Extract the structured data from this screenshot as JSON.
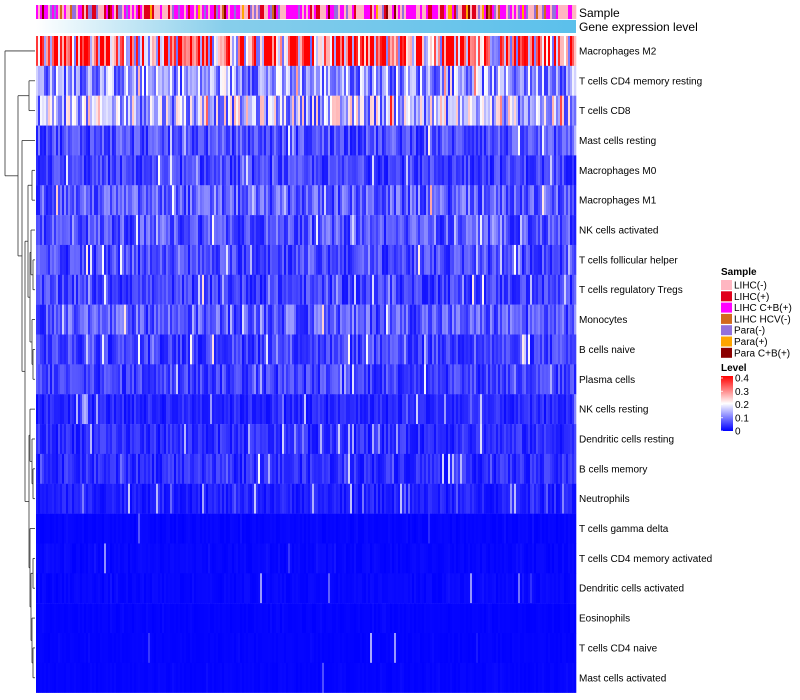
{
  "chart_data": {
    "type": "heatmap",
    "title": "",
    "annotation_tracks": [
      "Sample",
      "Gene expression level"
    ],
    "rows": [
      {
        "name": "Macrophages M2",
        "mean": 0.3
      },
      {
        "name": "T cells CD4 memory resting",
        "mean": 0.12
      },
      {
        "name": "T cells CD8",
        "mean": 0.15
      },
      {
        "name": "Mast cells resting",
        "mean": 0.06
      },
      {
        "name": "Macrophages M0",
        "mean": 0.05
      },
      {
        "name": "Macrophages M1",
        "mean": 0.07
      },
      {
        "name": "NK cells activated",
        "mean": 0.065
      },
      {
        "name": "T cells follicular helper",
        "mean": 0.055
      },
      {
        "name": "T cells regulatory  Tregs",
        "mean": 0.05
      },
      {
        "name": "Monocytes",
        "mean": 0.07
      },
      {
        "name": "B cells naive",
        "mean": 0.05
      },
      {
        "name": "Plasma cells",
        "mean": 0.05
      },
      {
        "name": "NK cells resting",
        "mean": 0.03
      },
      {
        "name": "Dendritic cells resting",
        "mean": 0.035
      },
      {
        "name": "B cells memory",
        "mean": 0.035
      },
      {
        "name": "Neutrophils",
        "mean": 0.025
      },
      {
        "name": "T cells gamma delta",
        "mean": 0.008
      },
      {
        "name": "T cells CD4 memory activated",
        "mean": 0.01
      },
      {
        "name": "Dendritic cells activated",
        "mean": 0.01
      },
      {
        "name": "Eosinophils",
        "mean": 0.005
      },
      {
        "name": "T cells CD4 naive",
        "mean": 0.005
      },
      {
        "name": "Mast cells activated",
        "mean": 0.006
      }
    ],
    "legend_sample": {
      "title": "Sample",
      "items": [
        {
          "label": "LIHC(-)",
          "color": "#ffb6c1"
        },
        {
          "label": "LIHC(+)",
          "color": "#e0001b"
        },
        {
          "label": "LIHC C+B(+)",
          "color": "#ff00ff"
        },
        {
          "label": "LIHC HCV(-)",
          "color": "#d2691e"
        },
        {
          "label": "Para(-)",
          "color": "#9370db"
        },
        {
          "label": "Para(+)",
          "color": "#ffa500"
        },
        {
          "label": "Para C+B(+)",
          "color": "#8b0000"
        }
      ]
    },
    "legend_level": {
      "title": "Level",
      "ticks": [
        "0.4",
        "0.3",
        "0.2",
        "0.1",
        "0"
      ],
      "range": [
        0,
        0.4
      ],
      "colors": {
        "low": "#0000ff",
        "mid": "#ffffff",
        "high": "#ff0000"
      }
    },
    "expression_bar_colors": [
      "#ffffff",
      "#87ceeb",
      "#5bc0eb"
    ]
  }
}
